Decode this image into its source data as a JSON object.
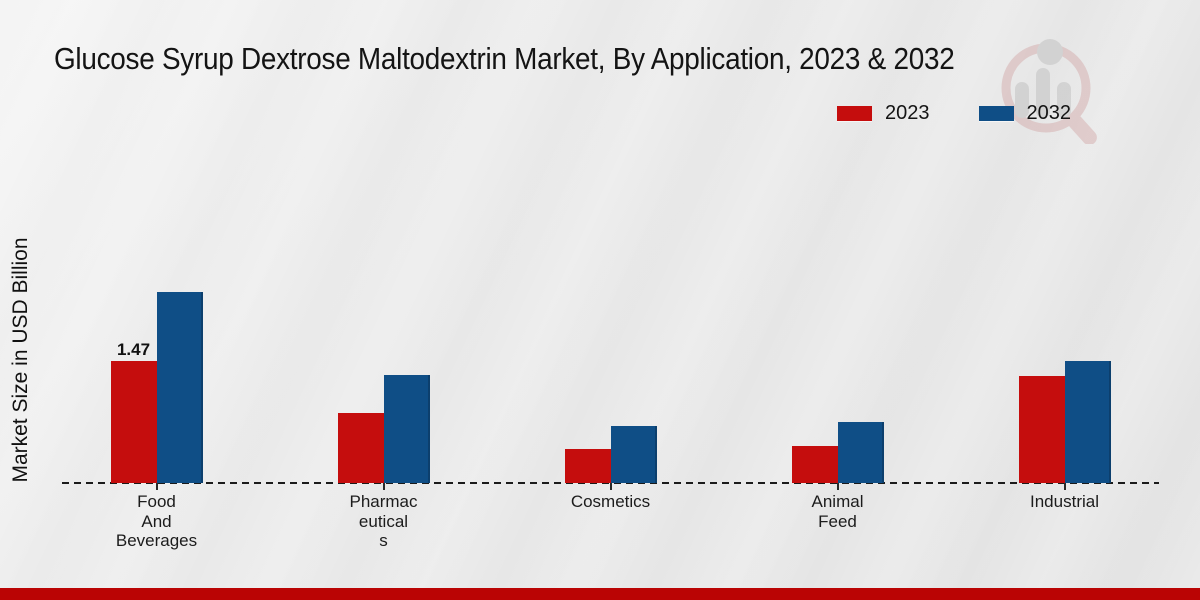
{
  "page": {
    "background_color": "#e7e7e7",
    "footer_bar_color": "#ba0404"
  },
  "header": {
    "title": "Glucose Syrup Dextrose Maltodextrin Market, By Application, 2023 & 2032"
  },
  "watermark": {
    "icon": "magnifier-bar-chart-logo"
  },
  "legend": {
    "items": [
      {
        "label": "2023",
        "color": "#c50d0d"
      },
      {
        "label": "2032",
        "color": "#0f4e86"
      }
    ]
  },
  "chart_data": {
    "type": "bar",
    "title": "Glucose Syrup Dextrose Maltodextrin Market, By Application, 2023 & 2032",
    "xlabel": "",
    "ylabel": "Market Size in USD Billion",
    "ylim": [
      0,
      2.6
    ],
    "grid": false,
    "legend_position": "top-right",
    "baseline_style": "dashed",
    "categories": [
      "Food And Beverages",
      "Pharmaceuticals",
      "Cosmetics",
      "Animal Feed",
      "Industrial"
    ],
    "category_display_lines": [
      [
        "Food",
        "And",
        "Beverages"
      ],
      [
        "Pharmac",
        "eutical",
        "s"
      ],
      [
        "Cosmetics"
      ],
      [
        "Animal",
        "Feed"
      ],
      [
        "Industrial"
      ]
    ],
    "series": [
      {
        "name": "2023",
        "color": "#c50d0d",
        "values": [
          1.47,
          0.85,
          0.41,
          0.45,
          1.29
        ]
      },
      {
        "name": "2032",
        "color": "#0f4e86",
        "values": [
          2.31,
          1.3,
          0.69,
          0.74,
          1.47
        ]
      }
    ],
    "annotations": [
      {
        "series": "2023",
        "category": "Food And Beverages",
        "text": "1.47"
      }
    ]
  }
}
